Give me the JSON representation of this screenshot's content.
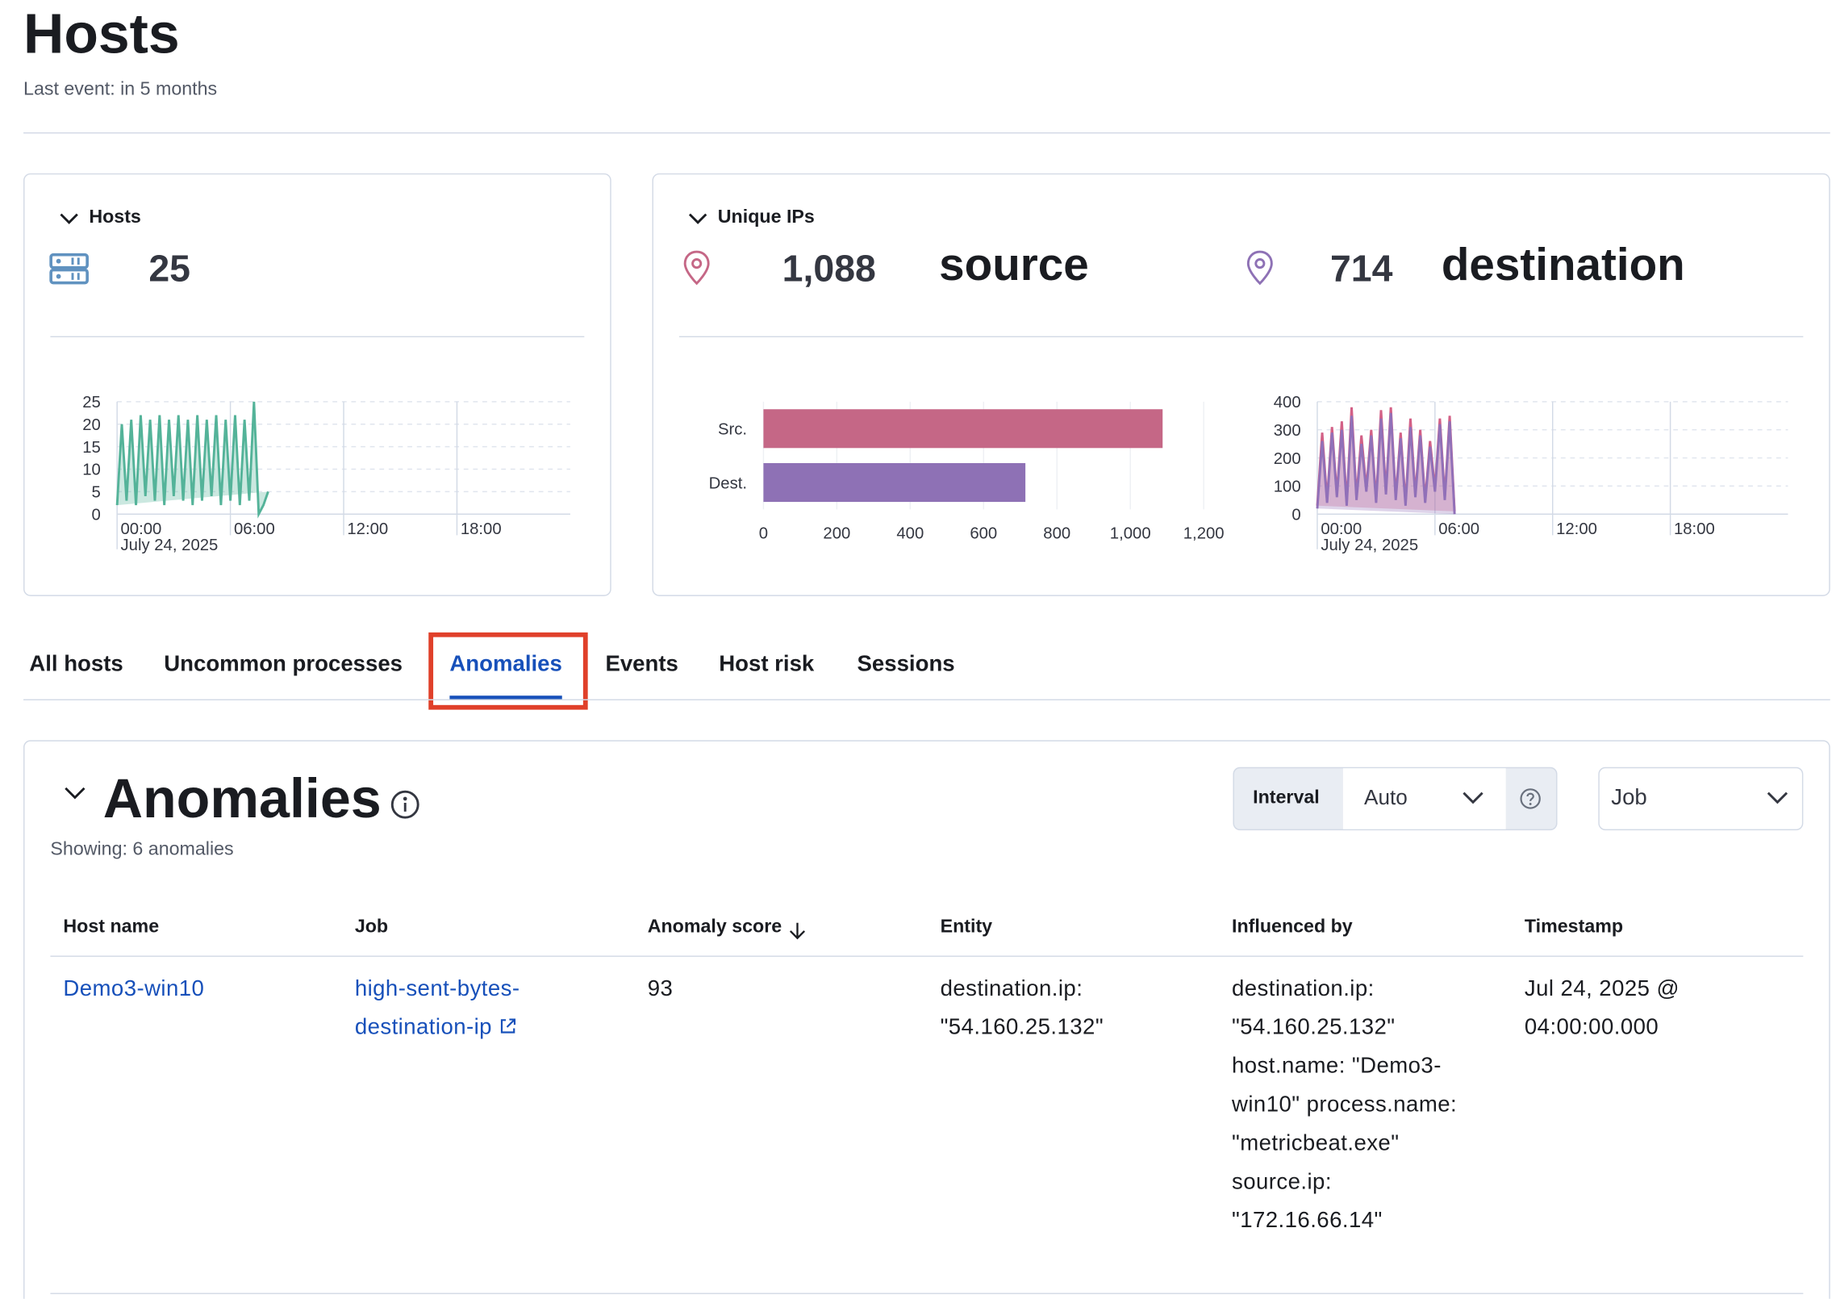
{
  "header": {
    "title": "Hosts",
    "subtitle": "Last event: in 5 months"
  },
  "kpi": {
    "hosts": {
      "title": "Hosts",
      "value": "25"
    },
    "unique_ips": {
      "title": "Unique IPs",
      "source_value": "1,088",
      "source_label": "source",
      "destination_value": "714",
      "destination_label": "destination"
    }
  },
  "chart_data": [
    {
      "type": "area",
      "color": "#54b399",
      "x": [
        0,
        0.25,
        0.5,
        0.75,
        1,
        1.25,
        1.5,
        1.75,
        2,
        2.25,
        2.5,
        2.75,
        3,
        3.25,
        3.5,
        3.75,
        4,
        4.25,
        4.5,
        4.75,
        5,
        5.25,
        5.5,
        5.75,
        6,
        6.25,
        6.5,
        6.75,
        7,
        7.25,
        7.5,
        7.75,
        8
      ],
      "series": [
        {
          "color": "#54b399",
          "values": [
            2,
            20,
            3,
            21,
            2,
            22,
            4,
            21,
            3,
            22,
            2,
            21,
            4,
            22,
            3,
            21,
            2,
            22,
            3,
            21,
            4,
            22,
            2,
            21,
            3,
            22,
            2,
            21,
            3,
            25,
            0,
            2,
            5
          ]
        }
      ],
      "xlim": [
        0,
        24
      ],
      "xticks": [
        {
          "value": 0,
          "label": "00:00"
        },
        {
          "value": 6,
          "label": "06:00"
        },
        {
          "value": 12,
          "label": "12:00"
        },
        {
          "value": 18,
          "label": "18:00"
        }
      ],
      "x_date_label": "July 24, 2025",
      "ylim": [
        0,
        25
      ],
      "yticks": [
        0,
        5,
        10,
        15,
        20,
        25
      ],
      "grid": true
    },
    {
      "type": "bar",
      "orientation": "horizontal",
      "categories": [
        "Src.",
        "Dest."
      ],
      "values": [
        1088,
        714
      ],
      "colors": [
        "#c56786",
        "#8e71b5"
      ],
      "xlim": [
        0,
        1200
      ],
      "xticks": [
        0,
        200,
        400,
        600,
        800,
        {
          "value": 1000,
          "label": "1,000"
        },
        {
          "value": 1200,
          "label": "1,200"
        }
      ],
      "grid": true
    },
    {
      "type": "area",
      "x": [
        0,
        0.25,
        0.5,
        0.75,
        1,
        1.25,
        1.5,
        1.75,
        2,
        2.25,
        2.5,
        2.75,
        3,
        3.25,
        3.5,
        3.75,
        4,
        4.25,
        4.5,
        4.75,
        5,
        5.25,
        5.5,
        5.75,
        6,
        6.25,
        6.5,
        6.75,
        7
      ],
      "series": [
        {
          "color": "#d36086",
          "values": [
            30,
            290,
            50,
            310,
            70,
            330,
            40,
            380,
            60,
            280,
            90,
            300,
            50,
            370,
            80,
            380,
            60,
            290,
            40,
            340,
            70,
            300,
            50,
            260,
            90,
            340,
            60,
            350,
            10
          ]
        },
        {
          "color": "#9170b8",
          "values": [
            20,
            260,
            40,
            290,
            60,
            300,
            30,
            350,
            50,
            250,
            80,
            280,
            40,
            340,
            70,
            360,
            50,
            270,
            30,
            310,
            60,
            280,
            40,
            240,
            80,
            320,
            50,
            330,
            0
          ]
        }
      ],
      "xlim": [
        0,
        24
      ],
      "xticks": [
        {
          "value": 0,
          "label": "00:00"
        },
        {
          "value": 6,
          "label": "06:00"
        },
        {
          "value": 12,
          "label": "12:00"
        },
        {
          "value": 18,
          "label": "18:00"
        }
      ],
      "x_date_label": "July 24, 2025",
      "ylim": [
        0,
        400
      ],
      "yticks": [
        0,
        100,
        200,
        300,
        400
      ],
      "grid": true
    }
  ],
  "tabs": {
    "items": [
      "All hosts",
      "Uncommon processes",
      "Anomalies",
      "Events",
      "Host risk",
      "Sessions"
    ],
    "active": "Anomalies"
  },
  "anomalies": {
    "title": "Anomalies",
    "showing": "Showing: 6 anomalies",
    "interval_label": "Interval",
    "interval_value": "Auto",
    "job_select": "Job",
    "table": {
      "columns": [
        "Host name",
        "Job",
        "Anomaly score",
        "Entity",
        "Influenced by",
        "Timestamp"
      ],
      "rows": [
        [
          "Demo3-win10",
          "high-sent-bytes-destination-ip",
          "93",
          "destination.ip: \"54.160.25.132\"",
          "destination.ip: \"54.160.25.132\" host.name: \"Demo3-win10\" process.name: \"metricbeat.exe\" source.ip: \"172.16.66.14\"",
          "Jul 24, 2025 @ 04:00:00.000"
        ]
      ]
    }
  }
}
